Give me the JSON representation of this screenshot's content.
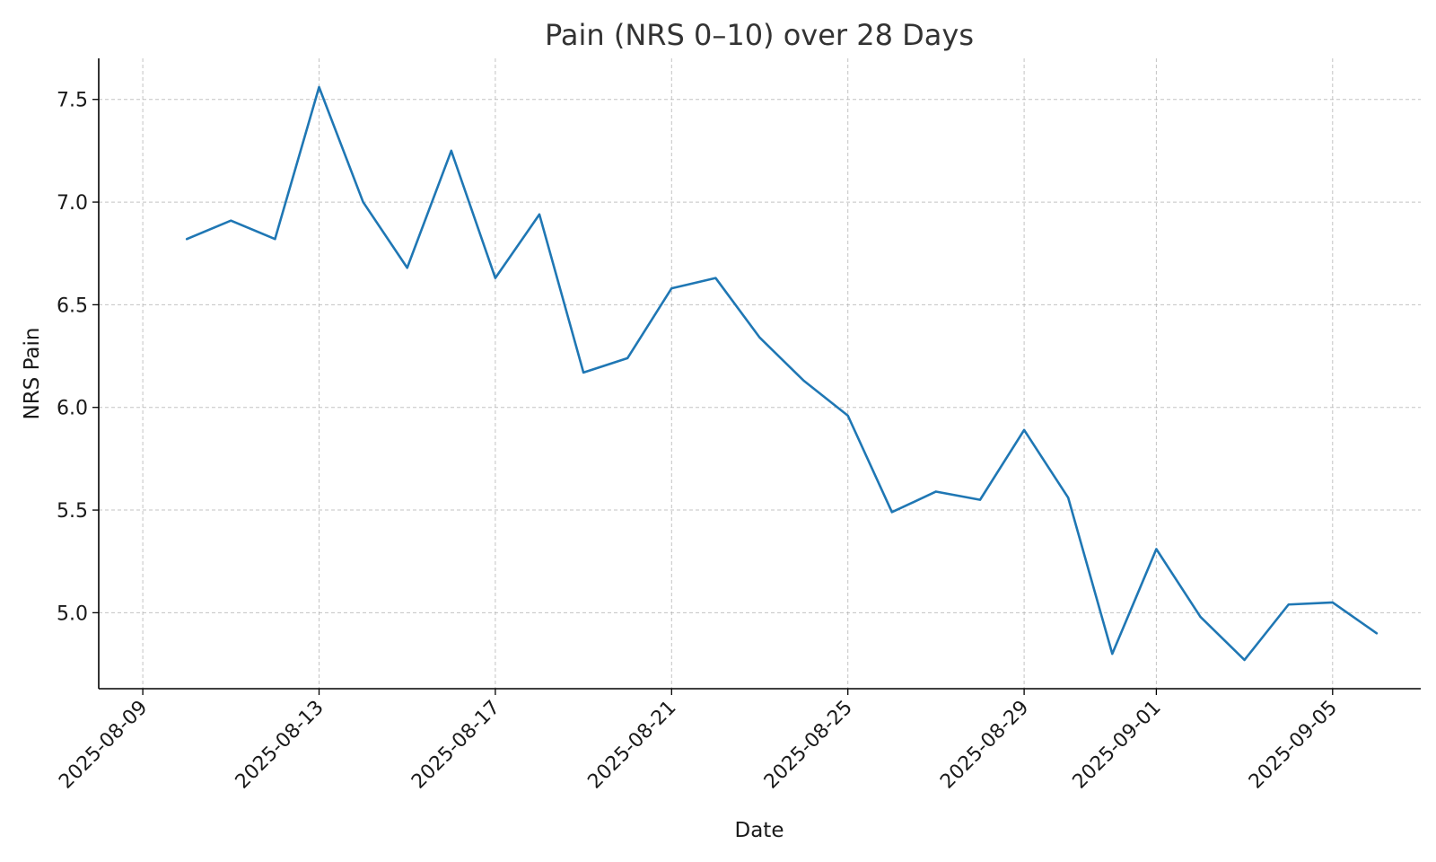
{
  "chart_data": {
    "type": "line",
    "title": "Pain (NRS 0–10) over 28 Days",
    "xlabel": "Date",
    "ylabel": "NRS Pain",
    "x_type": "date",
    "xlim": [
      "2025-08-08",
      "2025-09-07"
    ],
    "ylim": [
      4.63,
      7.7
    ],
    "x_ticks": [
      "2025-08-09",
      "2025-08-13",
      "2025-08-17",
      "2025-08-21",
      "2025-08-25",
      "2025-08-29",
      "2025-09-01",
      "2025-09-05"
    ],
    "y_ticks": [
      "5.0",
      "5.5",
      "6.0",
      "6.5",
      "7.0",
      "7.5"
    ],
    "grid": true,
    "colors": {
      "line": "#1f77b4"
    },
    "series": [
      {
        "x": [
          "2025-08-10",
          "2025-08-11",
          "2025-08-12",
          "2025-08-13",
          "2025-08-14",
          "2025-08-15",
          "2025-08-16",
          "2025-08-17",
          "2025-08-18",
          "2025-08-19",
          "2025-08-20",
          "2025-08-21",
          "2025-08-22",
          "2025-08-23",
          "2025-08-24",
          "2025-08-25",
          "2025-08-26",
          "2025-08-27",
          "2025-08-28",
          "2025-08-29",
          "2025-08-30",
          "2025-08-31",
          "2025-09-01",
          "2025-09-02",
          "2025-09-03",
          "2025-09-04",
          "2025-09-05",
          "2025-09-06"
        ],
        "values": [
          6.82,
          6.91,
          6.82,
          7.56,
          7.0,
          6.68,
          7.25,
          6.63,
          6.94,
          6.17,
          6.24,
          6.58,
          6.63,
          6.34,
          6.13,
          5.96,
          5.49,
          5.59,
          5.55,
          5.89,
          5.56,
          4.8,
          5.31,
          4.98,
          4.77,
          5.04,
          5.05,
          4.9
        ]
      }
    ]
  }
}
